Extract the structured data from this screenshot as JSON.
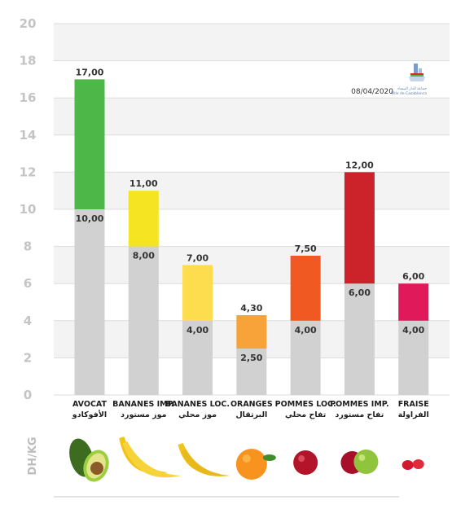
{
  "chart_data": {
    "type": "bar",
    "stacked": true,
    "date": "08/04/2020",
    "ylabel": "DH/KG",
    "ylim": [
      0,
      20
    ],
    "yticks": [
      "0",
      "2",
      "4",
      "6",
      "8",
      "10",
      "12",
      "14",
      "16",
      "18",
      "20"
    ],
    "grid": true,
    "categories": [
      {
        "fr": "AVOCAT",
        "ar": "الأفوكادو"
      },
      {
        "fr": "BANANES IMP.",
        "ar": "موز مستورد"
      },
      {
        "fr": "BANANES LOC.",
        "ar": "موز محلي"
      },
      {
        "fr": "ORANGES",
        "ar": "البرتقال"
      },
      {
        "fr": "POMMES LOC.",
        "ar": "تفاح محلي"
      },
      {
        "fr": "POMMES IMP.",
        "ar": "تفاح مستورد"
      },
      {
        "fr": "FRAISE",
        "ar": "الفراولة"
      }
    ],
    "min_values": [
      10,
      8,
      4,
      2.5,
      4,
      6,
      4
    ],
    "max_values": [
      17,
      11,
      7,
      4.3,
      7.5,
      12,
      6
    ],
    "min_labels": [
      "10,00",
      "8,00",
      "4,00",
      "2,50",
      "4,00",
      "6,00",
      "4,00"
    ],
    "max_labels": [
      "17,00",
      "11,00",
      "7,00",
      "4,30",
      "7,50",
      "12,00",
      "6,00"
    ],
    "bar_colors": [
      "#4db848",
      "#f4e422",
      "#fddc4e",
      "#f7a33a",
      "#f05a22",
      "#cc2229",
      "#e01a5a"
    ],
    "base_color": "#d1d1d1",
    "icons": [
      "avocado-icon",
      "banana-icon",
      "banana-local-icon",
      "orange-icon",
      "apple-red-icon",
      "apple-mixed-icon",
      "strawberry-icon"
    ],
    "logo": {
      "ar": "جماعة الدار البيضاء",
      "fr": "Ville de Casablanca"
    }
  }
}
